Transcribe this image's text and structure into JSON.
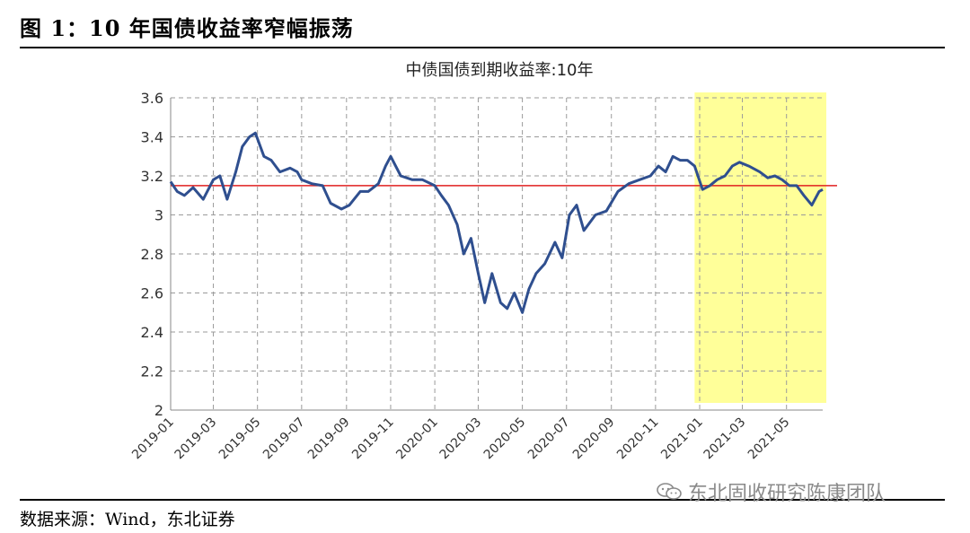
{
  "figure": {
    "title": "图 1：10 年国债收益率窄幅振荡",
    "source": "数据来源：Wind，东北证券",
    "watermark": "东北固收研究陈康团队"
  },
  "chart_data": {
    "type": "line",
    "title": "中债国债到期收益率:10年",
    "xlabel": "",
    "ylabel": "",
    "ylim": [
      2,
      3.6
    ],
    "yticks": [
      "2",
      "2.2",
      "2.4",
      "2.6",
      "2.8",
      "3",
      "3.2",
      "3.4",
      "3.6"
    ],
    "xticks": [
      "2019-01",
      "2019-03",
      "2019-05",
      "2019-07",
      "2019-09",
      "2019-11",
      "2020-01",
      "2020-03",
      "2020-05",
      "2020-07",
      "2020-09",
      "2020-11",
      "2021-01",
      "2021-03",
      "2021-05"
    ],
    "xrange": [
      "2019-01-01",
      "2021-06-20"
    ],
    "grid": true,
    "reference_line": {
      "value": 3.15,
      "color": "#e02020"
    },
    "highlight": {
      "start": "2020-12-25",
      "end": "2021-06-25",
      "color": "#ffff99"
    },
    "series": [
      {
        "color": "#2f4f8f",
        "x": [
          "2019-01-01",
          "2019-01-10",
          "2019-01-20",
          "2019-02-01",
          "2019-02-15",
          "2019-03-01",
          "2019-03-10",
          "2019-03-20",
          "2019-04-01",
          "2019-04-10",
          "2019-04-20",
          "2019-04-28",
          "2019-05-10",
          "2019-05-20",
          "2019-06-01",
          "2019-06-15",
          "2019-06-25",
          "2019-07-01",
          "2019-07-15",
          "2019-07-30",
          "2019-08-10",
          "2019-08-25",
          "2019-09-05",
          "2019-09-20",
          "2019-10-01",
          "2019-10-15",
          "2019-10-25",
          "2019-11-01",
          "2019-11-15",
          "2019-12-01",
          "2019-12-15",
          "2020-01-01",
          "2020-01-10",
          "2020-01-20",
          "2020-02-01",
          "2020-02-10",
          "2020-02-20",
          "2020-03-01",
          "2020-03-10",
          "2020-03-20",
          "2020-04-01",
          "2020-04-10",
          "2020-04-20",
          "2020-05-01",
          "2020-05-10",
          "2020-05-20",
          "2020-06-01",
          "2020-06-15",
          "2020-06-25",
          "2020-07-05",
          "2020-07-15",
          "2020-07-25",
          "2020-08-10",
          "2020-08-25",
          "2020-09-10",
          "2020-09-25",
          "2020-10-10",
          "2020-10-25",
          "2020-11-05",
          "2020-11-15",
          "2020-11-25",
          "2020-12-05",
          "2020-12-15",
          "2020-12-25",
          "2021-01-05",
          "2021-01-15",
          "2021-01-25",
          "2021-02-05",
          "2021-02-15",
          "2021-02-25",
          "2021-03-10",
          "2021-03-25",
          "2021-04-05",
          "2021-04-15",
          "2021-04-25",
          "2021-05-05",
          "2021-05-15",
          "2021-05-25",
          "2021-06-05",
          "2021-06-15",
          "2021-06-20"
        ],
        "values": [
          3.17,
          3.12,
          3.1,
          3.14,
          3.08,
          3.18,
          3.2,
          3.08,
          3.22,
          3.35,
          3.4,
          3.42,
          3.3,
          3.28,
          3.22,
          3.24,
          3.22,
          3.18,
          3.16,
          3.15,
          3.06,
          3.03,
          3.05,
          3.12,
          3.12,
          3.16,
          3.25,
          3.3,
          3.2,
          3.18,
          3.18,
          3.15,
          3.1,
          3.05,
          2.95,
          2.8,
          2.88,
          2.7,
          2.55,
          2.7,
          2.55,
          2.52,
          2.6,
          2.5,
          2.62,
          2.7,
          2.75,
          2.86,
          2.78,
          3.0,
          3.05,
          2.92,
          3.0,
          3.02,
          3.12,
          3.16,
          3.18,
          3.2,
          3.25,
          3.22,
          3.3,
          3.28,
          3.28,
          3.25,
          3.13,
          3.15,
          3.18,
          3.2,
          3.25,
          3.27,
          3.25,
          3.22,
          3.19,
          3.2,
          3.18,
          3.15,
          3.15,
          3.1,
          3.05,
          3.12,
          3.13
        ]
      }
    ]
  }
}
